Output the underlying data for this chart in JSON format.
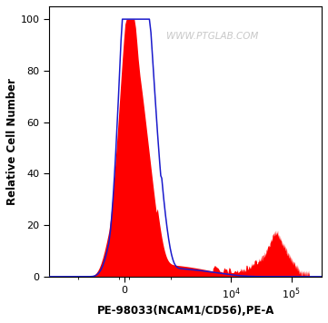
{
  "xlabel": "PE-98033(NCAM1/CD56),PE-A",
  "ylabel": "Relative Cell Number",
  "watermark": "WWW.PTGLAB.COM",
  "ylim": [
    0,
    105
  ],
  "yticks": [
    0,
    20,
    40,
    60,
    80,
    100
  ],
  "xlim_low": -3000,
  "xlim_high": 320000,
  "red_fill_color": "#FF0000",
  "blue_line_color": "#1A1ACC",
  "background_color": "#FFFFFF",
  "watermark_color": "#C8C8C8",
  "linthresh": 300,
  "linscale": 0.22
}
